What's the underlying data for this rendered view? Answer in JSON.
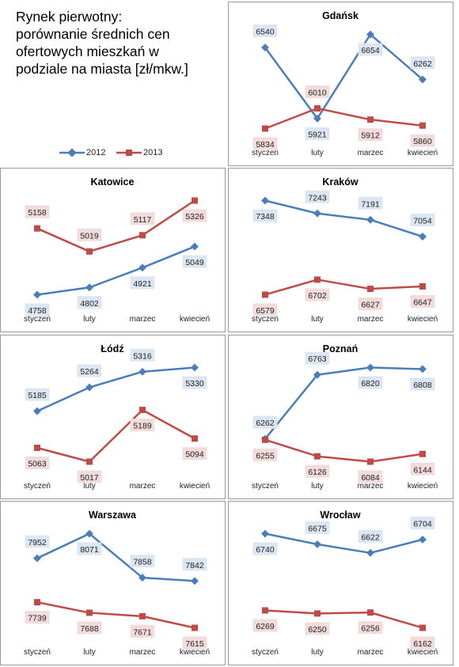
{
  "page_title": "Rynek pierwotny:\nporównanie średnich cen\nofertowych mieszkań w\npodziale na miasta [zł/mkw.]",
  "colors": {
    "series_2012": "#4a7ebb",
    "series_2013": "#be4b48",
    "label_bg_2012": "#dce6f2",
    "label_bg_2013": "#f2dcdb"
  },
  "legend": [
    "2012",
    "2013"
  ],
  "chart_data": [
    {
      "type": "line",
      "title": "Gdańsk",
      "categories": [
        "styczeń",
        "luty",
        "marzec",
        "kwiecień"
      ],
      "series": [
        {
          "name": "2012",
          "values": [
            6540,
            5921,
            6654,
            6262
          ]
        },
        {
          "name": "2013",
          "values": [
            5834,
            6010,
            5912,
            5860
          ]
        }
      ]
    },
    {
      "type": "line",
      "title": "Katowice",
      "categories": [
        "styczeń",
        "luty",
        "marzec",
        "kwiecień"
      ],
      "series": [
        {
          "name": "2012",
          "values": [
            4758,
            4802,
            4921,
            5049
          ]
        },
        {
          "name": "2013",
          "values": [
            5158,
            5019,
            5117,
            5326
          ]
        }
      ]
    },
    {
      "type": "line",
      "title": "Kraków",
      "categories": [
        "styczeń",
        "luty",
        "marzec",
        "kwiecień"
      ],
      "series": [
        {
          "name": "2012",
          "values": [
            7348,
            7243,
            7191,
            7054
          ]
        },
        {
          "name": "2013",
          "values": [
            6579,
            6702,
            6627,
            6647
          ]
        }
      ]
    },
    {
      "type": "line",
      "title": "Łódź",
      "categories": [
        "styczeń",
        "luty",
        "marzec",
        "kwiecień"
      ],
      "series": [
        {
          "name": "2012",
          "values": [
            5185,
            5264,
            5316,
            5330
          ]
        },
        {
          "name": "2013",
          "values": [
            5063,
            5017,
            5189,
            5094
          ]
        }
      ]
    },
    {
      "type": "line",
      "title": "Poznań",
      "categories": [
        "styczeń",
        "luty",
        "marzec",
        "kwiecień"
      ],
      "series": [
        {
          "name": "2012",
          "values": [
            6262,
            6763,
            6820,
            6808
          ]
        },
        {
          "name": "2013",
          "values": [
            6255,
            6126,
            6084,
            6144
          ]
        }
      ]
    },
    {
      "type": "line",
      "title": "Warszawa",
      "categories": [
        "styczeń",
        "luty",
        "marzec",
        "kwiecień"
      ],
      "series": [
        {
          "name": "2012",
          "values": [
            7952,
            8071,
            7858,
            7842
          ]
        },
        {
          "name": "2013",
          "values": [
            7739,
            7688,
            7671,
            7615
          ]
        }
      ]
    },
    {
      "type": "line",
      "title": "Wrocław",
      "categories": [
        "styczeń",
        "luty",
        "marzec",
        "kwiecień"
      ],
      "series": [
        {
          "name": "2012",
          "values": [
            6740,
            6675,
            6622,
            6704
          ]
        },
        {
          "name": "2013",
          "values": [
            6269,
            6250,
            6256,
            6162
          ]
        }
      ]
    }
  ]
}
